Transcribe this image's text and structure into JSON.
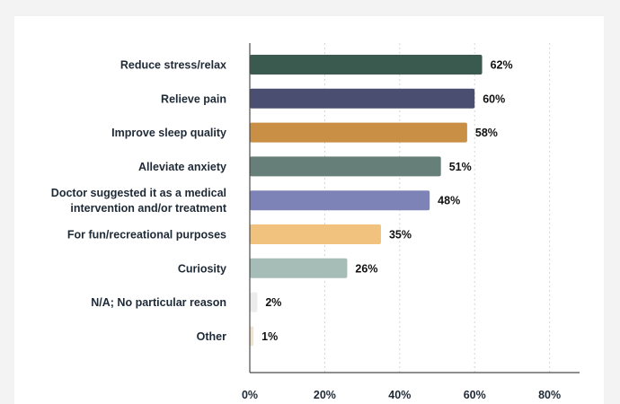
{
  "chart_data": {
    "type": "bar",
    "orientation": "horizontal",
    "categories": [
      [
        "Reduce stress/relax"
      ],
      [
        "Relieve pain"
      ],
      [
        "Improve sleep quality"
      ],
      [
        "Alleviate anxiety"
      ],
      [
        "Doctor suggested it as a medical",
        "intervention and/or treatment"
      ],
      [
        "For fun/recreational purposes"
      ],
      [
        "Curiosity"
      ],
      [
        "N/A; No particular reason"
      ],
      [
        "Other"
      ]
    ],
    "values": [
      62,
      60,
      58,
      51,
      48,
      35,
      26,
      2,
      1
    ],
    "value_labels": [
      "62%",
      "60%",
      "58%",
      "51%",
      "48%",
      "35%",
      "26%",
      "2%",
      "1%"
    ],
    "colors": [
      "#3b5a4f",
      "#4a4f72",
      "#c98f44",
      "#677f79",
      "#7e83b7",
      "#f1c27e",
      "#a5bcb7",
      "#ececec",
      "#f2e3cf"
    ],
    "xlim": [
      0,
      88
    ],
    "xticks": [
      0,
      20,
      40,
      60,
      80
    ],
    "xtick_labels": [
      "0%",
      "20%",
      "40%",
      "60%",
      "80%"
    ],
    "grid": "vertical-dotted",
    "title": "",
    "xlabel": "",
    "ylabel": ""
  }
}
